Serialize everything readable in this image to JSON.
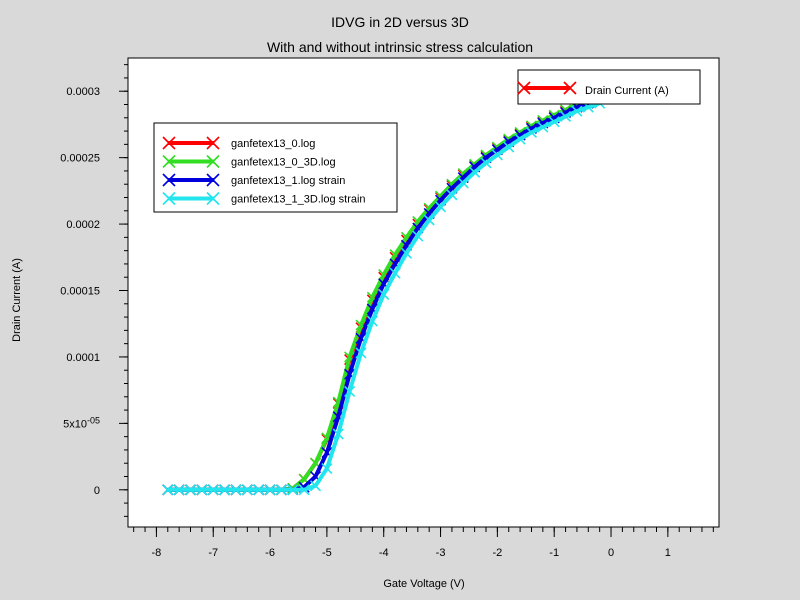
{
  "chart_data": {
    "type": "line",
    "title": "IDVG in 2D versus 3D",
    "subtitle": "With and without intrinsic stress calculation",
    "xlabel": "Gate Voltage (V)",
    "ylabel": "Drain Current (A)",
    "xlim": [
      -8.5,
      1.9
    ],
    "ylim": [
      -2.8e-05,
      0.000325
    ],
    "x_ticks": [
      -8,
      -7,
      -6,
      -5,
      -4,
      -3,
      -2,
      -1,
      0,
      1
    ],
    "y_ticks": [
      {
        "value": 0,
        "label": "0"
      },
      {
        "value": 5e-05,
        "label": "5x10",
        "exp": "-05"
      },
      {
        "value": 0.0001,
        "label": "0.0001"
      },
      {
        "value": 0.00015,
        "label": "0.00015"
      },
      {
        "value": 0.0002,
        "label": "0.0002"
      },
      {
        "value": 0.00025,
        "label": "0.00025"
      },
      {
        "value": 0.0003,
        "label": "0.0003"
      }
    ],
    "grid": false,
    "legend_position": "top-left",
    "series": [
      {
        "name": "ganfetex13_0.log",
        "color": "#ff0000",
        "points": [
          [
            -7.8,
            0
          ],
          [
            -5.8,
            0
          ],
          [
            -5.6,
            1e-06
          ],
          [
            -5.4,
            8e-06
          ],
          [
            -5.2,
            2e-05
          ],
          [
            -5.0,
            3.8e-05
          ],
          [
            -4.8,
            6.5e-05
          ],
          [
            -4.6,
            9.8e-05
          ],
          [
            -4.4,
            0.000122
          ],
          [
            -4.2,
            0.000143
          ],
          [
            -4.0,
            0.00016
          ],
          [
            -3.8,
            0.000175
          ],
          [
            -3.6,
            0.000188
          ],
          [
            -3.4,
            0.0002
          ],
          [
            -3.2,
            0.000211
          ],
          [
            -3.0,
            0.00022
          ],
          [
            -2.8,
            0.000229
          ],
          [
            -2.6,
            0.000237
          ],
          [
            -2.4,
            0.000244
          ],
          [
            -2.2,
            0.000251
          ],
          [
            -2.0,
            0.000257
          ],
          [
            -1.8,
            0.000263
          ],
          [
            -1.6,
            0.000268
          ],
          [
            -1.4,
            0.000273
          ],
          [
            -1.2,
            0.000277
          ],
          [
            -1.0,
            0.000281
          ],
          [
            -0.8,
            0.000285
          ],
          [
            -0.6,
            0.000289
          ],
          [
            -0.4,
            0.000292
          ],
          [
            -0.2,
            0.000295
          ],
          [
            0.0,
            0.000298
          ],
          [
            0.2,
            0.000301
          ],
          [
            0.4,
            0.000304
          ],
          [
            0.6,
            0.000306
          ],
          [
            0.8,
            0.000309
          ],
          [
            1.0,
            0.000311
          ]
        ]
      },
      {
        "name": "ganfetex13_0_3D.log",
        "color": "#33dd22",
        "points": [
          [
            -7.8,
            0
          ],
          [
            -5.8,
            0
          ],
          [
            -5.6,
            1e-06
          ],
          [
            -5.4,
            8e-06
          ],
          [
            -5.2,
            2e-05
          ],
          [
            -5.0,
            3.9e-05
          ],
          [
            -4.8,
            6.6e-05
          ],
          [
            -4.6,
            0.0001
          ],
          [
            -4.4,
            0.000124
          ],
          [
            -4.2,
            0.000145
          ],
          [
            -4.0,
            0.000162
          ],
          [
            -3.8,
            0.000177
          ],
          [
            -3.6,
            0.00019
          ],
          [
            -3.4,
            0.000202
          ],
          [
            -3.2,
            0.000212
          ],
          [
            -3.0,
            0.000221
          ],
          [
            -2.8,
            0.00023
          ],
          [
            -2.6,
            0.000238
          ],
          [
            -2.4,
            0.000245
          ],
          [
            -2.2,
            0.000252
          ],
          [
            -2.0,
            0.000258
          ],
          [
            -1.8,
            0.000264
          ],
          [
            -1.6,
            0.000269
          ],
          [
            -1.4,
            0.000274
          ],
          [
            -1.2,
            0.000278
          ],
          [
            -1.0,
            0.000282
          ],
          [
            -0.8,
            0.000286
          ],
          [
            -0.6,
            0.00029
          ],
          [
            -0.4,
            0.000293
          ],
          [
            -0.2,
            0.000296
          ],
          [
            0.0,
            0.000299
          ],
          [
            0.2,
            0.000302
          ],
          [
            0.4,
            0.000305
          ],
          [
            0.6,
            0.000307
          ],
          [
            0.8,
            0.00031
          ],
          [
            1.0,
            0.000312
          ]
        ]
      },
      {
        "name": "ganfetex13_1.log strain",
        "color": "#0000dd",
        "points": [
          [
            -7.8,
            0
          ],
          [
            -5.6,
            0
          ],
          [
            -5.4,
            2e-06
          ],
          [
            -5.2,
            1e-05
          ],
          [
            -5.0,
            2.8e-05
          ],
          [
            -4.8,
            5.5e-05
          ],
          [
            -4.6,
            8.7e-05
          ],
          [
            -4.4,
            0.000114
          ],
          [
            -4.2,
            0.000136
          ],
          [
            -4.0,
            0.000155
          ],
          [
            -3.8,
            0.00017
          ],
          [
            -3.6,
            0.000184
          ],
          [
            -3.4,
            0.000197
          ],
          [
            -3.2,
            0.000208
          ],
          [
            -3.0,
            0.000218
          ],
          [
            -2.8,
            0.000227
          ],
          [
            -2.6,
            0.000235
          ],
          [
            -2.4,
            0.000243
          ],
          [
            -2.2,
            0.00025
          ],
          [
            -2.0,
            0.000256
          ],
          [
            -1.8,
            0.000262
          ],
          [
            -1.6,
            0.000267
          ],
          [
            -1.4,
            0.000272
          ],
          [
            -1.2,
            0.000276
          ],
          [
            -1.0,
            0.00028
          ],
          [
            -0.8,
            0.000284
          ],
          [
            -0.6,
            0.000288
          ],
          [
            -0.4,
            0.000291
          ],
          [
            -0.2,
            0.000294
          ],
          [
            0.0,
            0.000297
          ],
          [
            0.2,
            0.0003
          ],
          [
            0.4,
            0.000303
          ],
          [
            0.6,
            0.000306
          ],
          [
            0.8,
            0.000308
          ],
          [
            1.0,
            0.000311
          ]
        ]
      },
      {
        "name": "ganfetex13_1_3D.log strain",
        "color": "#22e5ee",
        "points": [
          [
            -7.8,
            0
          ],
          [
            -5.4,
            0
          ],
          [
            -5.2,
            3e-06
          ],
          [
            -5.0,
            1.6e-05
          ],
          [
            -4.8,
            4.2e-05
          ],
          [
            -4.6,
            7.4e-05
          ],
          [
            -4.4,
            0.000103
          ],
          [
            -4.2,
            0.000127
          ],
          [
            -4.0,
            0.000147
          ],
          [
            -3.8,
            0.000163
          ],
          [
            -3.6,
            0.000178
          ],
          [
            -3.4,
            0.000191
          ],
          [
            -3.2,
            0.000203
          ],
          [
            -3.0,
            0.000213
          ],
          [
            -2.8,
            0.000222
          ],
          [
            -2.6,
            0.000231
          ],
          [
            -2.4,
            0.000239
          ],
          [
            -2.2,
            0.000246
          ],
          [
            -2.0,
            0.000252
          ],
          [
            -1.8,
            0.000258
          ],
          [
            -1.6,
            0.000264
          ],
          [
            -1.4,
            0.000269
          ],
          [
            -1.2,
            0.000273
          ],
          [
            -1.0,
            0.000277
          ],
          [
            -0.8,
            0.000281
          ],
          [
            -0.6,
            0.000285
          ],
          [
            -0.4,
            0.000288
          ],
          [
            -0.2,
            0.000291
          ],
          [
            0.0,
            0.000294
          ],
          [
            0.2,
            0.000297
          ],
          [
            0.4,
            0.0003
          ],
          [
            0.6,
            0.000303
          ],
          [
            0.8,
            0.000306
          ],
          [
            1.0,
            0.000308
          ]
        ]
      }
    ],
    "legend2": {
      "label": "Drain Current (A)",
      "color": "#ff0000",
      "position": "top-right"
    }
  }
}
